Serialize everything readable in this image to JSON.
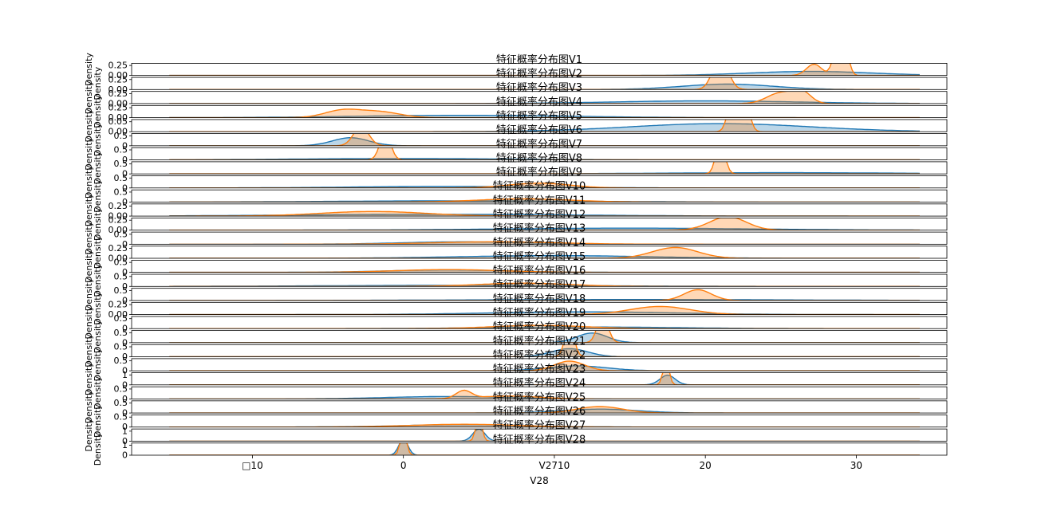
{
  "chart_data": {
    "type": "area",
    "layout": "28 stacked density subplots sharing the x axis",
    "xlabel": "V28",
    "x_ticks": [
      -10,
      0,
      10,
      20,
      30
    ],
    "x_tick_labels": [
      "□10",
      "0",
      "V2710",
      "20",
      "30"
    ],
    "xlim": [
      -18,
      36
    ],
    "ylabel": "Density",
    "grid": false,
    "legend": "none",
    "series_colors": {
      "blue": "#1f77b4",
      "orange": "#ff7f0e"
    },
    "panels": [
      {
        "title": "特征概率分布图V1",
        "ylim": [
          0,
          0.3
        ],
        "yticks": [
          "0.25",
          "0.00"
        ],
        "blue": [
          {
            "mu": 27,
            "sd": 4,
            "w": 1
          }
        ],
        "orange": [
          {
            "mu": 27.2,
            "sd": 0.5,
            "w": 0.35
          },
          {
            "mu": 28.6,
            "sd": 0.25,
            "w": 0.3
          },
          {
            "mu": 29.3,
            "sd": 0.25,
            "w": 0.35
          }
        ]
      },
      {
        "title": "特征概率分布图V2",
        "ylim": [
          0,
          0.3
        ],
        "yticks": [
          "0.25",
          "0.00"
        ],
        "blue": [
          {
            "mu": 21.5,
            "sd": 3,
            "w": 1
          }
        ],
        "orange": [
          {
            "mu": 21,
            "sd": 0.5,
            "w": 1
          }
        ]
      },
      {
        "title": "特征概率分布图V3",
        "ylim": [
          0,
          0.3
        ],
        "yticks": [
          "0.25",
          "0.00"
        ],
        "blue": [
          {
            "mu": 20,
            "sd": 6,
            "w": 1
          }
        ],
        "orange": [
          {
            "mu": 25,
            "sd": 0.9,
            "w": 0.6
          },
          {
            "mu": 26.4,
            "sd": 0.6,
            "w": 0.4
          }
        ]
      },
      {
        "title": "特征概率分布图V4",
        "ylim": [
          0,
          0.3
        ],
        "yticks": [
          "0.25",
          "0.00"
        ],
        "blue": [
          {
            "mu": 4,
            "sd": 7,
            "w": 1
          }
        ],
        "orange": [
          {
            "mu": -4,
            "sd": 1.2,
            "w": 0.55
          },
          {
            "mu": -1.5,
            "sd": 1.3,
            "w": 0.45
          }
        ]
      },
      {
        "title": "特征概率分布图V5",
        "ylim": [
          0,
          0.1
        ],
        "yticks": [
          "0.05",
          "0.00"
        ],
        "blue": [
          {
            "mu": 21,
            "sd": 6,
            "w": 1
          }
        ],
        "orange": [
          {
            "mu": 22.2,
            "sd": 0.4,
            "w": 1
          }
        ]
      },
      {
        "title": "特征概率分布图V6",
        "ylim": [
          0,
          0.5
        ],
        "yticks": [
          "0.5",
          "0"
        ],
        "blue": [
          {
            "mu": -3.5,
            "sd": 1.2,
            "w": 1
          }
        ],
        "orange": [
          {
            "mu": -2.8,
            "sd": 0.5,
            "w": 1
          }
        ]
      },
      {
        "title": "特征概率分布图V7",
        "ylim": [
          0,
          0.5
        ],
        "yticks": [
          "0.5",
          "0"
        ],
        "blue": [
          {
            "mu": 0,
            "sd": 7,
            "w": 1
          }
        ],
        "orange": [
          {
            "mu": -1.2,
            "sd": 0.35,
            "w": 1
          }
        ]
      },
      {
        "title": "特征概率分布图V8",
        "ylim": [
          0,
          0.5
        ],
        "yticks": [
          "0.5",
          "0"
        ],
        "blue": [
          {
            "mu": 25,
            "sd": 8,
            "w": 1
          }
        ],
        "orange": [
          {
            "mu": 21,
            "sd": 0.3,
            "w": 1
          }
        ]
      },
      {
        "title": "特征概率分布图V9",
        "ylim": [
          0,
          0.5
        ],
        "yticks": [
          "0.5",
          "0"
        ],
        "blue": [
          {
            "mu": 3,
            "sd": 6,
            "w": 1
          }
        ],
        "orange": [
          {
            "mu": 9,
            "sd": 2,
            "w": 1
          }
        ]
      },
      {
        "title": "特征概率分布图V10",
        "ylim": [
          0,
          0.5
        ],
        "yticks": [
          "0.5",
          "0"
        ],
        "blue": [
          {
            "mu": 4,
            "sd": 8,
            "w": 1
          }
        ],
        "orange": [
          {
            "mu": 8,
            "sd": 3,
            "w": 1
          }
        ]
      },
      {
        "title": "特征概率分布图V11",
        "ylim": [
          0,
          0.3
        ],
        "yticks": [
          "0.25",
          "0.00"
        ],
        "blue": [
          {
            "mu": 2,
            "sd": 9,
            "w": 1
          }
        ],
        "orange": [
          {
            "mu": -2,
            "sd": 3.5,
            "w": 1
          }
        ]
      },
      {
        "title": "特征概率分布图V12",
        "ylim": [
          0,
          0.3
        ],
        "yticks": [
          "0.25",
          "0.00"
        ],
        "blue": [
          {
            "mu": 15,
            "sd": 8,
            "w": 1
          }
        ],
        "orange": [
          {
            "mu": 21.5,
            "sd": 1.2,
            "w": 1
          }
        ]
      },
      {
        "title": "特征概率分布图V13",
        "ylim": [
          0,
          0.5
        ],
        "yticks": [
          "0.5",
          "0"
        ],
        "blue": [
          {
            "mu": 4,
            "sd": 4,
            "w": 1
          }
        ],
        "orange": [
          {
            "mu": 6,
            "sd": 4,
            "w": 1
          }
        ]
      },
      {
        "title": "特征概率分布图V14",
        "ylim": [
          0,
          0.3
        ],
        "yticks": [
          "0.25",
          "0.00"
        ],
        "blue": [
          {
            "mu": 10,
            "sd": 6,
            "w": 1
          }
        ],
        "orange": [
          {
            "mu": 18,
            "sd": 1.5,
            "w": 1
          }
        ]
      },
      {
        "title": "特征概率分布图V15",
        "ylim": [
          0,
          0.5
        ],
        "yticks": [
          "0.5",
          "0"
        ],
        "blue": [
          {
            "mu": 3,
            "sd": 4,
            "w": 1
          }
        ],
        "orange": [
          {
            "mu": 3,
            "sd": 3.5,
            "w": 1
          }
        ]
      },
      {
        "title": "特征概率分布图V16",
        "ylim": [
          0,
          0.5
        ],
        "yticks": [
          "0.5",
          "0"
        ],
        "blue": [
          {
            "mu": 4,
            "sd": 9,
            "w": 1
          }
        ],
        "orange": [
          {
            "mu": 8,
            "sd": 3,
            "w": 1
          }
        ]
      },
      {
        "title": "特征概率分布图V17",
        "ylim": [
          0,
          0.5
        ],
        "yticks": [
          "0.5",
          "0"
        ],
        "blue": [
          {
            "mu": 15,
            "sd": 10,
            "w": 1
          }
        ],
        "orange": [
          {
            "mu": 19.5,
            "sd": 0.9,
            "w": 1
          }
        ]
      },
      {
        "title": "特征概率分布图V18",
        "ylim": [
          0,
          0.3
        ],
        "yticks": [
          "0.25",
          "0.00"
        ],
        "blue": [
          {
            "mu": 12,
            "sd": 6,
            "w": 1
          }
        ],
        "orange": [
          {
            "mu": 17,
            "sd": 2,
            "w": 1
          }
        ]
      },
      {
        "title": "特征概率分布图V19",
        "ylim": [
          0,
          0.5
        ],
        "yticks": [
          "0.5",
          "0"
        ],
        "blue": [
          {
            "mu": 12,
            "sd": 6,
            "w": 1
          }
        ],
        "orange": [
          {
            "mu": 9,
            "sd": 3,
            "w": 1
          }
        ]
      },
      {
        "title": "特征概率分布图V20",
        "ylim": [
          0,
          0.5
        ],
        "yticks": [
          "0.5",
          "0"
        ],
        "blue": [
          {
            "mu": 12.5,
            "sd": 1,
            "w": 1
          }
        ],
        "orange": [
          {
            "mu": 13.2,
            "sd": 0.35,
            "w": 1
          }
        ]
      },
      {
        "title": "特征概率分布图V21",
        "ylim": [
          0,
          0.5
        ],
        "yticks": [
          "0.5",
          "0"
        ],
        "blue": [
          {
            "mu": 11,
            "sd": 1.2,
            "w": 1
          }
        ],
        "orange": [
          {
            "mu": 11,
            "sd": 0.3,
            "w": 1
          }
        ]
      },
      {
        "title": "特征概率分布图V22",
        "ylim": [
          0,
          0.5
        ],
        "yticks": [
          "0.5",
          "0"
        ],
        "blue": [
          {
            "mu": 11.5,
            "sd": 2,
            "w": 1
          }
        ],
        "orange": [
          {
            "mu": 11,
            "sd": 1,
            "w": 1
          }
        ]
      },
      {
        "title": "特征概率分布图V23",
        "ylim": [
          0,
          1
        ],
        "yticks": [
          "1",
          "0"
        ],
        "blue": [
          {
            "mu": 17.5,
            "sd": 0.5,
            "w": 1
          }
        ],
        "orange": [
          {
            "mu": 17.4,
            "sd": 0.2,
            "w": 1
          }
        ]
      },
      {
        "title": "特征概率分布图V24",
        "ylim": [
          0,
          0.5
        ],
        "yticks": [
          "0.5",
          "0"
        ],
        "blue": [
          {
            "mu": 3,
            "sd": 4,
            "w": 1
          }
        ],
        "orange": [
          {
            "mu": 4,
            "sd": 0.5,
            "w": 0.4
          },
          {
            "mu": 7,
            "sd": 2,
            "w": 0.6
          }
        ]
      },
      {
        "title": "特征概率分布图V25",
        "ylim": [
          0,
          0.5
        ],
        "yticks": [
          "0.5",
          "0"
        ],
        "blue": [
          {
            "mu": 13,
            "sd": 2.5,
            "w": 1
          }
        ],
        "orange": [
          {
            "mu": 13,
            "sd": 1.5,
            "w": 1
          }
        ]
      },
      {
        "title": "特征概率分布图V26",
        "ylim": [
          0,
          0.5
        ],
        "yticks": [
          "0.5",
          "0"
        ],
        "blue": [
          {
            "mu": 4,
            "sd": 4,
            "w": 1
          }
        ],
        "orange": [
          {
            "mu": 4,
            "sd": 3.5,
            "w": 1
          }
        ]
      },
      {
        "title": "特征概率分布图V27",
        "ylim": [
          0,
          1
        ],
        "yticks": [
          "1",
          "0"
        ],
        "blue": [
          {
            "mu": 5,
            "sd": 0.4,
            "w": 1
          }
        ],
        "orange": [
          {
            "mu": 5,
            "sd": 0.2,
            "w": 1
          }
        ]
      },
      {
        "title": "特征概率分布图V28",
        "ylim": [
          0,
          1
        ],
        "yticks": [
          "1",
          "0"
        ],
        "blue": [
          {
            "mu": 0,
            "sd": 0.3,
            "w": 1
          }
        ],
        "orange": [
          {
            "mu": 0,
            "sd": 0.2,
            "w": 1
          }
        ]
      }
    ]
  }
}
